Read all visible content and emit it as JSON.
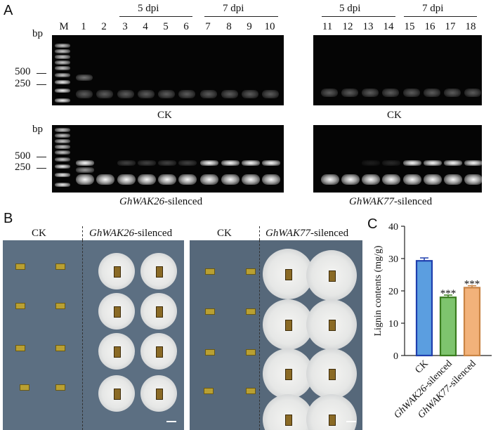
{
  "panel_a": {
    "letter": "A",
    "bp_label": "bp",
    "marker_label": "M",
    "dpi5": "5 dpi",
    "dpi7": "7 dpi",
    "size_500": "500",
    "size_250": "250",
    "lanes_left": [
      "1",
      "2",
      "3",
      "4",
      "5",
      "6",
      "7",
      "8",
      "9",
      "10"
    ],
    "lanes_right": [
      "11",
      "12",
      "13",
      "14",
      "15",
      "16",
      "17",
      "18"
    ],
    "ck_label": "CK",
    "gh26_italic": "GhWAK26",
    "gh77_italic": "GhWAK77",
    "silenced_suffix": "-silenced",
    "top_left_lanes": [
      0.9,
      0.4,
      0.4,
      0.4,
      0.4,
      0.4,
      0.4,
      0.4,
      0.4,
      0.4
    ],
    "band_upper_left": [
      1,
      0,
      0.25,
      0.25,
      0.25,
      0.25,
      1,
      1,
      1,
      1
    ],
    "band_upper_right": [
      0,
      0,
      0.1,
      0.15,
      1,
      1,
      1,
      1
    ]
  },
  "panel_b": {
    "letter": "B",
    "left_ck": "CK",
    "left_silenced_italic": "GhWAK26",
    "left_silenced_suffix": "-silenced",
    "right_ck": "CK",
    "right_silenced_italic": "GhWAK77",
    "right_silenced_suffix": "-silenced"
  },
  "panel_c": {
    "letter": "C"
  },
  "chart_data": {
    "type": "bar",
    "categories": [
      "CK",
      "GhWAK26-silenced",
      "GhWAK77-silenced"
    ],
    "category_parts": [
      {
        "italic": "",
        "plain": "CK"
      },
      {
        "italic": "GhWAK26",
        "plain": "-silenced"
      },
      {
        "italic": "GhWAK77",
        "plain": "-silenced"
      }
    ],
    "values": [
      29.3,
      18.0,
      21.0
    ],
    "errors": [
      0.9,
      0.7,
      0.6
    ],
    "significance": [
      "",
      "***",
      "***"
    ],
    "ylabel": "Lignin contents (mg/g)",
    "ylim": [
      0,
      40
    ],
    "yticks": [
      "0",
      "10",
      "20",
      "30",
      "40"
    ],
    "colors": {
      "fills": [
        "#5b9ee0",
        "#7ec46e",
        "#f2b27a"
      ],
      "edges": [
        "#1f3fae",
        "#3a7d1e",
        "#c98444"
      ]
    }
  }
}
